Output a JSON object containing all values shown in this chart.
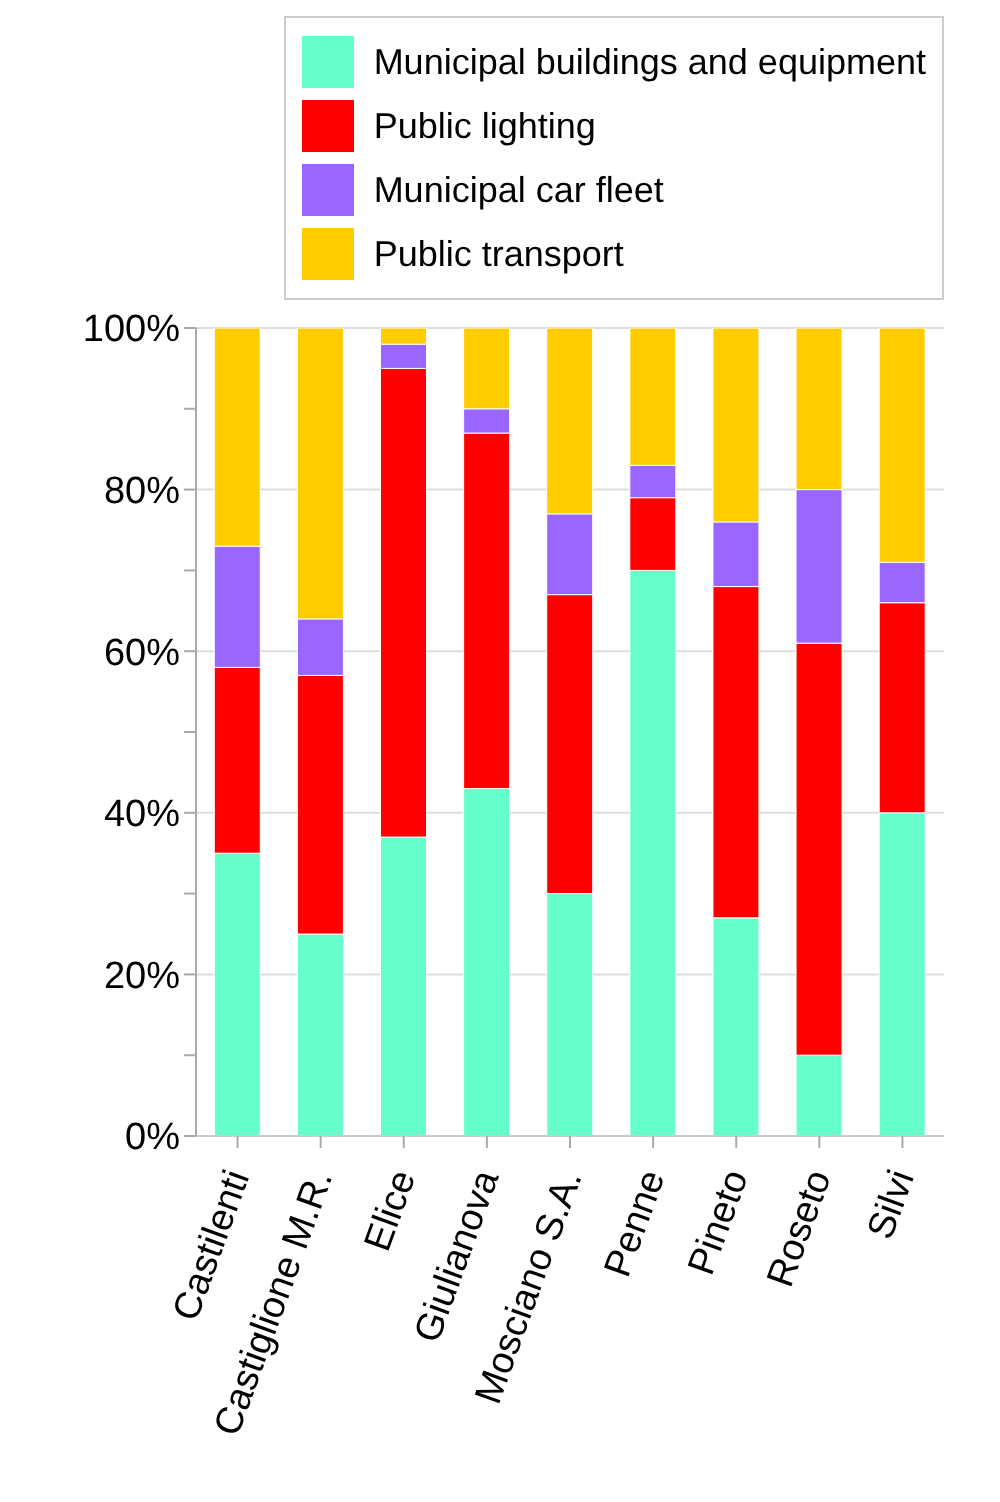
{
  "chart_data": {
    "type": "bar",
    "stacked": true,
    "categories": [
      "Castilenti",
      "Castiglione M.R.",
      "Elice",
      "Giulianova",
      "Mosciano S.A.",
      "Penne",
      "Pineto",
      "Roseto",
      "Silvi"
    ],
    "series": [
      {
        "name": "Municipal buildings and equipment",
        "color": "#66ffcc",
        "values": [
          35,
          25,
          37,
          43,
          30,
          70,
          27,
          10,
          40
        ]
      },
      {
        "name": "Public lighting",
        "color": "#ff0000",
        "values": [
          23,
          32,
          58,
          44,
          37,
          9,
          41,
          51,
          26
        ]
      },
      {
        "name": "Municipal car fleet",
        "color": "#9966ff",
        "values": [
          15,
          7,
          3,
          3,
          10,
          4,
          8,
          19,
          5
        ]
      },
      {
        "name": "Public transport",
        "color": "#ffcc00",
        "values": [
          27,
          36,
          2,
          10,
          23,
          17,
          24,
          20,
          29
        ]
      }
    ],
    "ylim": [
      0,
      100
    ],
    "yticks": [
      {
        "value": 0,
        "label": "0%"
      },
      {
        "value": 10,
        "label": null
      },
      {
        "value": 20,
        "label": "20%"
      },
      {
        "value": 30,
        "label": null
      },
      {
        "value": 40,
        "label": "40%"
      },
      {
        "value": 50,
        "label": null
      },
      {
        "value": 60,
        "label": "60%"
      },
      {
        "value": 70,
        "label": null
      },
      {
        "value": 80,
        "label": "80%"
      },
      {
        "value": 90,
        "label": null
      },
      {
        "value": 100,
        "label": "100%"
      }
    ],
    "grid": "y",
    "legend": "top right"
  }
}
